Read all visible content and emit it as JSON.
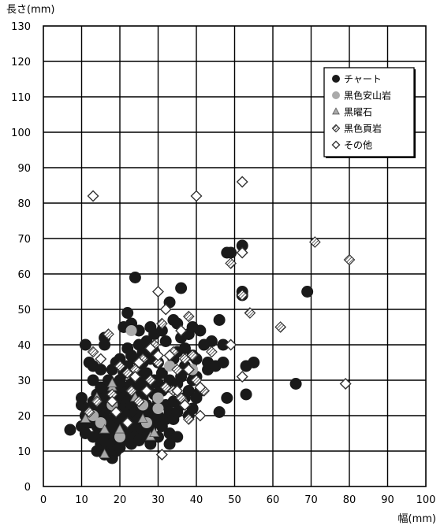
{
  "chart_data": {
    "type": "scatter",
    "title": "",
    "xlabel": "幅(mm)",
    "ylabel": "長さ(mm)",
    "xlim": [
      0,
      100
    ],
    "ylim": [
      0,
      130
    ],
    "x_ticks": [
      "0",
      "10",
      "20",
      "30",
      "40",
      "50",
      "60",
      "70",
      "80",
      "90",
      "100"
    ],
    "y_ticks": [
      "0",
      "10",
      "20",
      "30",
      "40",
      "50",
      "60",
      "70",
      "80",
      "90",
      "100",
      "110",
      "120",
      "130"
    ],
    "grid": true,
    "legend_position": "top-right",
    "series": [
      {
        "name": "チャート",
        "marker": "circle",
        "color": "#1a1a1a",
        "points": [
          [
            7,
            16
          ],
          [
            10,
            17
          ],
          [
            10,
            23
          ],
          [
            10,
            25
          ],
          [
            11,
            15
          ],
          [
            11,
            20
          ],
          [
            11,
            40
          ],
          [
            12,
            35
          ],
          [
            12,
            22
          ],
          [
            12,
            18
          ],
          [
            13,
            14
          ],
          [
            13,
            20
          ],
          [
            13,
            24
          ],
          [
            13,
            30
          ],
          [
            13,
            34
          ],
          [
            14,
            10
          ],
          [
            14,
            17
          ],
          [
            14,
            21
          ],
          [
            14,
            26
          ],
          [
            15,
            12
          ],
          [
            15,
            15
          ],
          [
            15,
            19
          ],
          [
            15,
            23
          ],
          [
            15,
            28
          ],
          [
            15,
            33
          ],
          [
            16,
            9
          ],
          [
            16,
            13
          ],
          [
            16,
            20
          ],
          [
            16,
            25
          ],
          [
            16,
            40
          ],
          [
            16,
            42
          ],
          [
            17,
            11
          ],
          [
            17,
            15
          ],
          [
            17,
            18
          ],
          [
            17,
            22
          ],
          [
            17,
            26
          ],
          [
            17,
            30
          ],
          [
            18,
            8
          ],
          [
            18,
            12
          ],
          [
            18,
            17
          ],
          [
            18,
            24
          ],
          [
            18,
            28
          ],
          [
            18,
            33
          ],
          [
            19,
            10
          ],
          [
            19,
            14
          ],
          [
            19,
            20
          ],
          [
            19,
            23
          ],
          [
            19,
            27
          ],
          [
            19,
            35
          ],
          [
            20,
            11
          ],
          [
            20,
            16
          ],
          [
            20,
            19
          ],
          [
            20,
            25
          ],
          [
            20,
            30
          ],
          [
            20,
            36
          ],
          [
            21,
            13
          ],
          [
            21,
            17
          ],
          [
            21,
            22
          ],
          [
            21,
            28
          ],
          [
            21,
            32
          ],
          [
            21,
            45
          ],
          [
            22,
            15
          ],
          [
            22,
            20
          ],
          [
            22,
            24
          ],
          [
            22,
            27
          ],
          [
            22,
            34
          ],
          [
            22,
            39
          ],
          [
            22,
            49
          ],
          [
            23,
            12
          ],
          [
            23,
            18
          ],
          [
            23,
            23
          ],
          [
            23,
            29
          ],
          [
            23,
            37
          ],
          [
            23,
            46
          ],
          [
            24,
            14
          ],
          [
            24,
            17
          ],
          [
            24,
            21
          ],
          [
            24,
            26
          ],
          [
            24,
            31
          ],
          [
            24,
            36
          ],
          [
            24,
            59
          ],
          [
            25,
            13
          ],
          [
            25,
            19
          ],
          [
            25,
            23
          ],
          [
            25,
            28
          ],
          [
            25,
            33
          ],
          [
            25,
            40
          ],
          [
            25,
            44
          ],
          [
            26,
            16
          ],
          [
            26,
            21
          ],
          [
            26,
            25
          ],
          [
            26,
            30
          ],
          [
            26,
            35
          ],
          [
            26,
            38
          ],
          [
            27,
            14
          ],
          [
            27,
            19
          ],
          [
            27,
            23
          ],
          [
            27,
            27
          ],
          [
            27,
            32
          ],
          [
            27,
            41
          ],
          [
            28,
            12
          ],
          [
            28,
            16
          ],
          [
            28,
            21
          ],
          [
            28,
            29
          ],
          [
            28,
            36
          ],
          [
            28,
            45
          ],
          [
            29,
            18
          ],
          [
            29,
            22
          ],
          [
            29,
            26
          ],
          [
            29,
            30
          ],
          [
            29,
            38
          ],
          [
            29,
            43
          ],
          [
            30,
            14
          ],
          [
            30,
            20
          ],
          [
            30,
            24
          ],
          [
            30,
            29
          ],
          [
            30,
            35
          ],
          [
            31,
            17
          ],
          [
            31,
            27
          ],
          [
            31,
            32
          ],
          [
            31,
            44
          ],
          [
            32,
            19
          ],
          [
            32,
            23
          ],
          [
            32,
            28
          ],
          [
            32,
            41
          ],
          [
            33,
            12
          ],
          [
            33,
            15
          ],
          [
            33,
            21
          ],
          [
            33,
            30
          ],
          [
            33,
            52
          ],
          [
            34,
            19
          ],
          [
            34,
            24
          ],
          [
            34,
            36
          ],
          [
            34,
            47
          ],
          [
            35,
            14
          ],
          [
            35,
            21
          ],
          [
            35,
            29
          ],
          [
            35,
            38
          ],
          [
            35,
            46
          ],
          [
            36,
            23
          ],
          [
            36,
            31
          ],
          [
            36,
            42
          ],
          [
            36,
            56
          ],
          [
            37,
            25
          ],
          [
            37,
            34
          ],
          [
            37,
            39
          ],
          [
            38,
            20
          ],
          [
            38,
            27
          ],
          [
            38,
            33
          ],
          [
            38,
            43
          ],
          [
            39,
            22
          ],
          [
            39,
            30
          ],
          [
            39,
            37
          ],
          [
            39,
            45
          ],
          [
            40,
            25
          ],
          [
            40,
            31
          ],
          [
            40,
            36
          ],
          [
            41,
            27
          ],
          [
            41,
            44
          ],
          [
            42,
            40
          ],
          [
            43,
            33
          ],
          [
            43,
            35
          ],
          [
            44,
            41
          ],
          [
            45,
            34
          ],
          [
            46,
            21
          ],
          [
            46,
            47
          ],
          [
            47,
            35
          ],
          [
            47,
            40
          ],
          [
            48,
            25
          ],
          [
            48,
            66
          ],
          [
            49,
            66
          ],
          [
            52,
            54
          ],
          [
            52,
            55
          ],
          [
            52,
            68
          ],
          [
            53,
            26
          ],
          [
            53,
            34
          ],
          [
            55,
            35
          ],
          [
            66,
            29
          ],
          [
            69,
            55
          ]
        ]
      },
      {
        "name": "黒色安山岩",
        "marker": "circle",
        "color": "#aaaaaa",
        "points": [
          [
            13,
            20
          ],
          [
            15,
            18
          ],
          [
            18,
            23
          ],
          [
            20,
            14
          ],
          [
            23,
            44
          ],
          [
            26,
            23
          ],
          [
            27,
            18
          ],
          [
            30,
            25
          ],
          [
            30,
            22
          ],
          [
            33,
            34
          ],
          [
            39,
            33
          ]
        ]
      },
      {
        "name": "黒曜石",
        "marker": "triangle",
        "color": "#aaaaaa",
        "points": [
          [
            11,
            19
          ],
          [
            14,
            25
          ],
          [
            16,
            9
          ],
          [
            16,
            16
          ],
          [
            18,
            28
          ],
          [
            18,
            29
          ],
          [
            20,
            16
          ],
          [
            24,
            25
          ],
          [
            26,
            19
          ],
          [
            28,
            14
          ],
          [
            29,
            15
          ],
          [
            37,
            24
          ]
        ]
      },
      {
        "name": "黒色頁岩",
        "marker": "diamond-hatched",
        "color": "#333333",
        "points": [
          [
            12,
            21
          ],
          [
            13,
            38
          ],
          [
            14,
            24
          ],
          [
            17,
            43
          ],
          [
            18,
            26
          ],
          [
            20,
            34
          ],
          [
            22,
            32
          ],
          [
            23,
            27
          ],
          [
            24,
            33
          ],
          [
            25,
            24
          ],
          [
            26,
            36
          ],
          [
            28,
            30
          ],
          [
            29,
            40
          ],
          [
            30,
            35
          ],
          [
            31,
            46
          ],
          [
            32,
            28
          ],
          [
            34,
            27
          ],
          [
            34,
            38
          ],
          [
            35,
            33
          ],
          [
            36,
            25
          ],
          [
            37,
            36
          ],
          [
            38,
            19
          ],
          [
            38,
            48
          ],
          [
            39,
            37
          ],
          [
            40,
            30
          ],
          [
            42,
            27
          ],
          [
            44,
            38
          ],
          [
            49,
            63
          ],
          [
            52,
            54
          ],
          [
            54,
            49
          ],
          [
            62,
            45
          ],
          [
            71,
            69
          ],
          [
            80,
            64
          ]
        ]
      },
      {
        "name": "その他",
        "marker": "diamond-open",
        "color": "#333333",
        "points": [
          [
            13,
            82
          ],
          [
            15,
            36
          ],
          [
            18,
            24
          ],
          [
            19,
            21
          ],
          [
            22,
            18
          ],
          [
            24,
            31
          ],
          [
            25,
            35
          ],
          [
            27,
            27
          ],
          [
            28,
            39
          ],
          [
            30,
            37
          ],
          [
            30,
            55
          ],
          [
            31,
            9
          ],
          [
            32,
            50
          ],
          [
            33,
            37
          ],
          [
            35,
            27
          ],
          [
            36,
            44
          ],
          [
            37,
            23
          ],
          [
            38,
            33
          ],
          [
            40,
            82
          ],
          [
            41,
            20
          ],
          [
            41,
            28
          ],
          [
            49,
            40
          ],
          [
            52,
            31
          ],
          [
            52,
            66
          ],
          [
            52,
            86
          ],
          [
            79,
            29
          ]
        ]
      }
    ]
  }
}
